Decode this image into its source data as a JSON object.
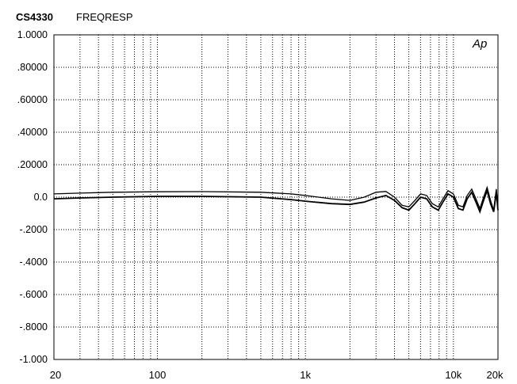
{
  "title": {
    "id": "CS4330",
    "name": "FREQRESP"
  },
  "logo_text": "Ap",
  "chart_data": {
    "type": "line",
    "title": "CS4330 FREQRESP",
    "xscale": "log",
    "xlim": [
      20,
      20000
    ],
    "ylim": [
      -1.0,
      1.0
    ],
    "grid": true,
    "grid_style": "dotted",
    "y_ticks": [
      {
        "value": 1.0,
        "label": "1.0000"
      },
      {
        "value": 0.8,
        "label": ".80000"
      },
      {
        "value": 0.6,
        "label": ".60000"
      },
      {
        "value": 0.4,
        "label": ".40000"
      },
      {
        "value": 0.2,
        "label": ".20000"
      },
      {
        "value": 0.0,
        "label": "0.0"
      },
      {
        "value": -0.2,
        "label": "-.2000"
      },
      {
        "value": -0.4,
        "label": "-.4000"
      },
      {
        "value": -0.6,
        "label": "-.6000"
      },
      {
        "value": -0.8,
        "label": "-.8000"
      },
      {
        "value": -1.0,
        "label": "-1.000"
      }
    ],
    "x_ticks": [
      {
        "value": 20,
        "label": "20"
      },
      {
        "value": 100,
        "label": "100"
      },
      {
        "value": 1000,
        "label": "1k"
      },
      {
        "value": 10000,
        "label": "10k"
      },
      {
        "value": 20000,
        "label": "20k"
      }
    ],
    "series": [
      {
        "x": [
          20,
          30,
          50,
          100,
          200,
          500,
          800,
          1000,
          1500,
          2000,
          2500,
          3000,
          3500,
          4000,
          4500,
          5000,
          5500,
          6000,
          6600,
          7200,
          7900,
          8500,
          9200,
          10000,
          10800,
          11600,
          12400,
          13300,
          14200,
          15100,
          16000,
          16900,
          17800,
          18700,
          19500,
          20000
        ],
        "values": [
          0.02,
          0.025,
          0.03,
          0.033,
          0.034,
          0.03,
          0.02,
          0.01,
          -0.01,
          -0.02,
          0.0,
          0.03,
          0.035,
          0.0,
          -0.05,
          -0.06,
          -0.02,
          0.02,
          0.01,
          -0.04,
          -0.06,
          -0.01,
          0.04,
          0.02,
          -0.05,
          -0.06,
          0.01,
          0.05,
          -0.01,
          -0.07,
          0.0,
          0.06,
          -0.02,
          -0.08,
          0.05,
          -0.06
        ]
      },
      {
        "x": [
          20,
          30,
          50,
          100,
          200,
          500,
          800,
          1000,
          1500,
          2000,
          2500,
          3000,
          3500,
          4000,
          4500,
          5000,
          5500,
          6000,
          6600,
          7200,
          7900,
          8500,
          9200,
          10000,
          10800,
          11600,
          12400,
          13300,
          14200,
          15100,
          16000,
          16900,
          17800,
          18700,
          19500,
          20000
        ],
        "values": [
          -0.01,
          -0.005,
          0.0,
          0.005,
          0.005,
          0.0,
          -0.015,
          -0.025,
          -0.04,
          -0.045,
          -0.03,
          -0.005,
          0.01,
          -0.02,
          -0.065,
          -0.08,
          -0.04,
          0.0,
          -0.01,
          -0.06,
          -0.08,
          -0.03,
          0.02,
          0.0,
          -0.07,
          -0.08,
          -0.01,
          0.03,
          -0.03,
          -0.09,
          -0.02,
          0.04,
          -0.04,
          -0.09,
          0.03,
          -0.08
        ]
      }
    ]
  }
}
